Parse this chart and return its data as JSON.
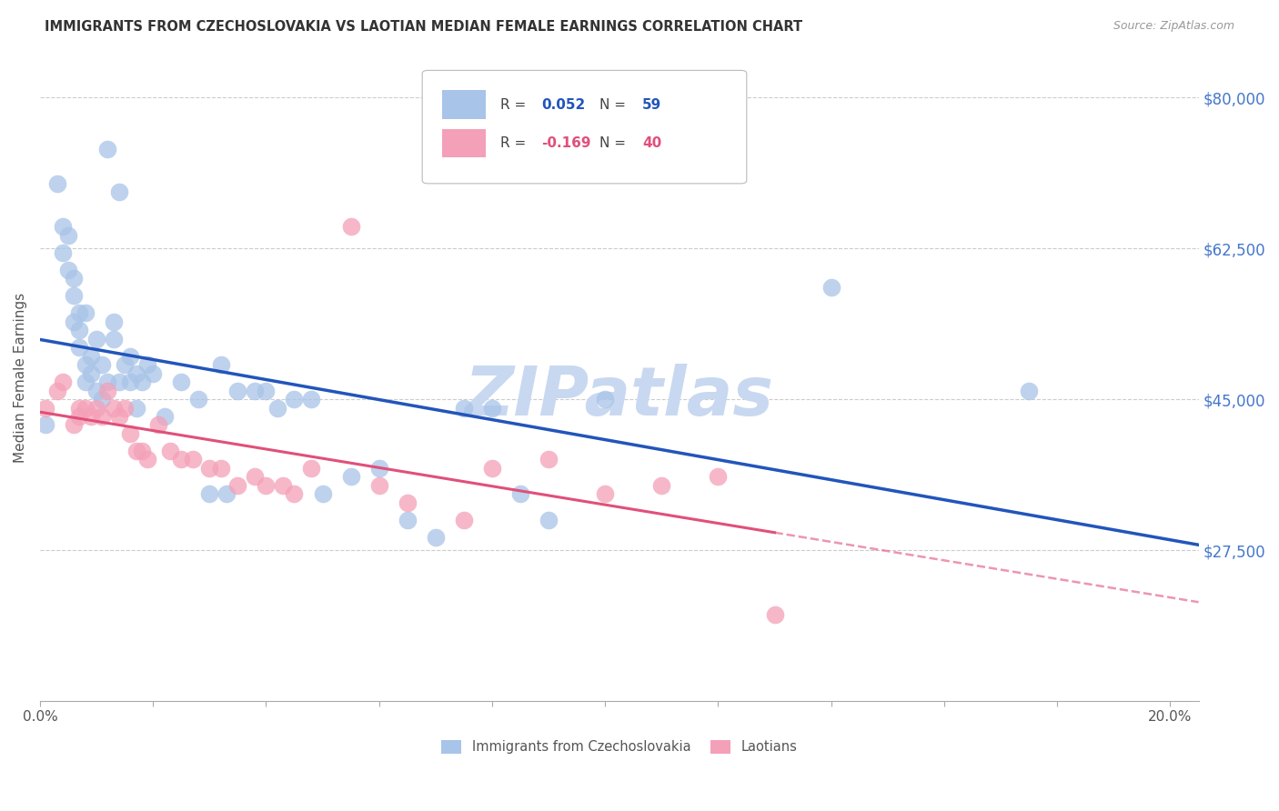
{
  "title": "IMMIGRANTS FROM CZECHOSLOVAKIA VS LAOTIAN MEDIAN FEMALE EARNINGS CORRELATION CHART",
  "source": "Source: ZipAtlas.com",
  "ylabel": "Median Female Earnings",
  "xlim": [
    0.0,
    0.205
  ],
  "ylim": [
    10000,
    85000
  ],
  "yticks": [
    27500,
    45000,
    62500,
    80000
  ],
  "ytick_labels": [
    "$27,500",
    "$45,000",
    "$62,500",
    "$80,000"
  ],
  "xtick_positions": [
    0.0,
    0.02,
    0.04,
    0.06,
    0.08,
    0.1,
    0.12,
    0.14,
    0.16,
    0.18,
    0.2
  ],
  "xtick_labels": [
    "0.0%",
    "",
    "",
    "",
    "",
    "",
    "",
    "",
    "",
    "",
    "20.0%"
  ],
  "series1_label": "Immigrants from Czechoslovakia",
  "series1_R": "0.052",
  "series1_N": "59",
  "series1_color": "#a8c4e8",
  "series1_line_color": "#2255bb",
  "series2_label": "Laotians",
  "series2_R": "-0.169",
  "series2_N": "40",
  "series2_color": "#f4a0b8",
  "series2_line_color": "#e0507a",
  "watermark": "ZIPatlas",
  "watermark_color": "#c8d8f0",
  "background_color": "#ffffff",
  "series1_x": [
    0.001,
    0.003,
    0.004,
    0.004,
    0.005,
    0.005,
    0.006,
    0.006,
    0.006,
    0.007,
    0.007,
    0.007,
    0.008,
    0.008,
    0.008,
    0.009,
    0.009,
    0.01,
    0.01,
    0.011,
    0.011,
    0.012,
    0.012,
    0.013,
    0.013,
    0.014,
    0.014,
    0.015,
    0.016,
    0.016,
    0.017,
    0.017,
    0.018,
    0.019,
    0.02,
    0.022,
    0.025,
    0.028,
    0.03,
    0.032,
    0.033,
    0.035,
    0.038,
    0.04,
    0.042,
    0.045,
    0.048,
    0.05,
    0.055,
    0.06,
    0.065,
    0.07,
    0.075,
    0.08,
    0.085,
    0.09,
    0.1,
    0.14,
    0.175
  ],
  "series1_y": [
    42000,
    70000,
    65000,
    62000,
    64000,
    60000,
    59000,
    57000,
    54000,
    55000,
    53000,
    51000,
    55000,
    49000,
    47000,
    50000,
    48000,
    46000,
    52000,
    45000,
    49000,
    47000,
    74000,
    54000,
    52000,
    47000,
    69000,
    49000,
    50000,
    47000,
    48000,
    44000,
    47000,
    49000,
    48000,
    43000,
    47000,
    45000,
    34000,
    49000,
    34000,
    46000,
    46000,
    46000,
    44000,
    45000,
    45000,
    34000,
    36000,
    37000,
    31000,
    29000,
    44000,
    44000,
    34000,
    31000,
    45000,
    58000,
    46000
  ],
  "series2_x": [
    0.001,
    0.003,
    0.004,
    0.006,
    0.007,
    0.007,
    0.008,
    0.009,
    0.01,
    0.011,
    0.012,
    0.013,
    0.014,
    0.015,
    0.016,
    0.017,
    0.018,
    0.019,
    0.021,
    0.023,
    0.025,
    0.027,
    0.03,
    0.032,
    0.035,
    0.038,
    0.04,
    0.043,
    0.045,
    0.048,
    0.055,
    0.06,
    0.065,
    0.075,
    0.08,
    0.09,
    0.1,
    0.11,
    0.12,
    0.13
  ],
  "series2_y": [
    44000,
    46000,
    47000,
    42000,
    43000,
    44000,
    44000,
    43000,
    44000,
    43000,
    46000,
    44000,
    43000,
    44000,
    41000,
    39000,
    39000,
    38000,
    42000,
    39000,
    38000,
    38000,
    37000,
    37000,
    35000,
    36000,
    35000,
    35000,
    34000,
    37000,
    65000,
    35000,
    33000,
    31000,
    37000,
    38000,
    34000,
    35000,
    36000,
    20000
  ]
}
